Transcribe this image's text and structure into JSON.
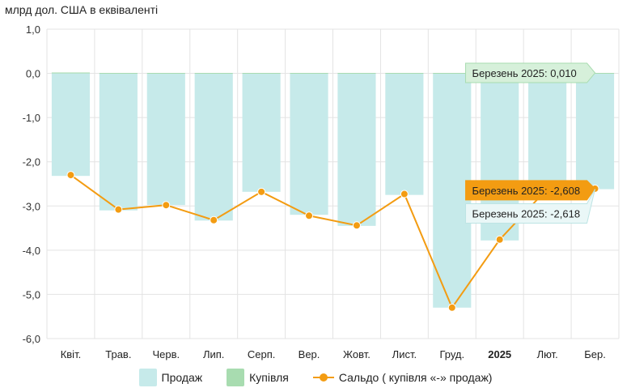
{
  "chart_data": {
    "type": "bar",
    "unit_label": "млрд дол. США в еквіваленті",
    "categories": [
      "Квіт.",
      "Трав.",
      "Черв.",
      "Лип.",
      "Серп.",
      "Вер.",
      "Жовт.",
      "Лист.",
      "Груд.",
      "2025",
      "Лют.",
      "Бер."
    ],
    "bold_categories": [
      "2025"
    ],
    "ylim": [
      -6,
      1
    ],
    "yticks": [
      "1,0",
      "0,0",
      "-1,0",
      "-2,0",
      "-3,0",
      "-4,0",
      "-5,0",
      "-6,0"
    ],
    "grid": true,
    "legend_position": "bottom",
    "series": [
      {
        "name": "Продаж",
        "kind": "bar",
        "color": "#c6eaea",
        "values": [
          -2.32,
          -3.1,
          -2.98,
          -3.33,
          -2.68,
          -3.2,
          -3.45,
          -2.75,
          -5.3,
          -3.78,
          -2.62,
          -2.62
        ]
      },
      {
        "name": "Купівля",
        "kind": "bar",
        "color": "#a8dcb0",
        "values": [
          0.02,
          0.01,
          0.01,
          0.01,
          0.01,
          0.01,
          0.01,
          0.01,
          0.01,
          0.01,
          0.01,
          0.01
        ]
      },
      {
        "name": "Сальдо ( купівля «-» продаж)",
        "kind": "line",
        "color": "#f39c12",
        "values": [
          -2.3,
          -3.08,
          -2.98,
          -3.32,
          -2.68,
          -3.22,
          -3.44,
          -2.73,
          -5.3,
          -3.76,
          -2.61,
          -2.608
        ]
      }
    ],
    "tooltips": [
      {
        "text": "Березень 2025: 0,010",
        "category_index": 11,
        "value": 0.01,
        "bg": "#d6f0da",
        "border": "#a8dcb0",
        "color": "#222222"
      },
      {
        "text": "Березень 2025: -2,608",
        "category_index": 11,
        "value": -2.608,
        "bg": "#f39c12",
        "border": "#f39c12",
        "color": "#222222"
      },
      {
        "text": "Березень 2025: -2,618",
        "category_index": 11,
        "value": -2.618,
        "bg": "#eaf7f7",
        "border": "#bde4e4",
        "color": "#222222"
      }
    ]
  }
}
